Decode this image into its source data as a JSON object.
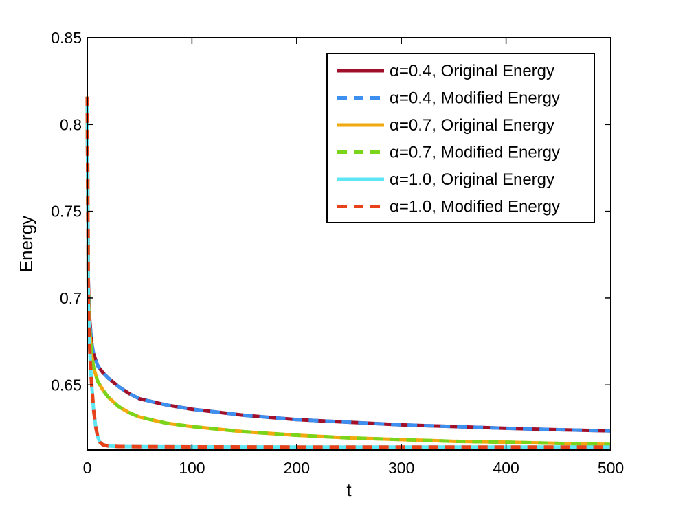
{
  "chart_data": {
    "type": "line",
    "title": "",
    "xlabel": "t",
    "ylabel": "Energy",
    "xlim": [
      0,
      500
    ],
    "ylim": [
      0.6125,
      0.85
    ],
    "xticks": [
      0,
      100,
      200,
      300,
      400,
      500
    ],
    "xtick_labels": [
      "0",
      "100",
      "200",
      "300",
      "400",
      "500"
    ],
    "yticks": [
      0.65,
      0.7,
      0.75,
      0.8,
      0.85
    ],
    "ytick_labels": [
      "0.65",
      "0.7",
      "0.75",
      "0.8",
      "0.85"
    ],
    "grid": false,
    "legend_position": "top-right",
    "series": [
      {
        "name": "α=0.4, Original Energy",
        "style": "solid",
        "color": "#a0102a",
        "x": [
          0,
          1,
          2,
          4,
          6,
          10,
          15,
          20,
          30,
          40,
          50,
          75,
          100,
          150,
          200,
          250,
          300,
          350,
          400,
          450,
          500
        ],
        "y": [
          0.816,
          0.71,
          0.69,
          0.675,
          0.668,
          0.661,
          0.657,
          0.654,
          0.649,
          0.645,
          0.642,
          0.6385,
          0.636,
          0.6325,
          0.63,
          0.6285,
          0.627,
          0.626,
          0.625,
          0.6242,
          0.6235
        ]
      },
      {
        "name": "α=0.4, Modified Energy",
        "style": "dashed",
        "color": "#3d8ff0",
        "x": [
          0,
          1,
          2,
          4,
          6,
          10,
          15,
          20,
          30,
          40,
          50,
          75,
          100,
          150,
          200,
          250,
          300,
          350,
          400,
          450,
          500
        ],
        "y": [
          0.816,
          0.71,
          0.69,
          0.675,
          0.668,
          0.661,
          0.657,
          0.654,
          0.649,
          0.645,
          0.642,
          0.6385,
          0.636,
          0.6325,
          0.63,
          0.6285,
          0.627,
          0.626,
          0.625,
          0.6242,
          0.6235
        ]
      },
      {
        "name": "α=0.7, Original Energy",
        "style": "solid",
        "color": "#f0aa10",
        "x": [
          0,
          1,
          2,
          4,
          6,
          10,
          15,
          20,
          30,
          40,
          50,
          75,
          100,
          150,
          200,
          250,
          300,
          350,
          400,
          450,
          500
        ],
        "y": [
          0.816,
          0.705,
          0.685,
          0.668,
          0.66,
          0.652,
          0.647,
          0.643,
          0.6375,
          0.634,
          0.6315,
          0.628,
          0.626,
          0.623,
          0.621,
          0.6195,
          0.6185,
          0.6175,
          0.617,
          0.6163,
          0.6157
        ]
      },
      {
        "name": "α=0.7, Modified Energy",
        "style": "dashed",
        "color": "#7ad41a",
        "x": [
          0,
          1,
          2,
          4,
          6,
          10,
          15,
          20,
          30,
          40,
          50,
          75,
          100,
          150,
          200,
          250,
          300,
          350,
          400,
          450,
          500
        ],
        "y": [
          0.816,
          0.705,
          0.685,
          0.668,
          0.66,
          0.652,
          0.647,
          0.643,
          0.6375,
          0.634,
          0.6315,
          0.628,
          0.626,
          0.623,
          0.621,
          0.6195,
          0.6185,
          0.6175,
          0.617,
          0.6163,
          0.6157
        ]
      },
      {
        "name": "α=1.0, Original Energy",
        "style": "solid",
        "color": "#5ee6f5",
        "x": [
          0,
          1,
          2,
          3,
          4,
          6,
          8,
          10,
          12,
          15,
          20,
          30,
          50,
          100,
          200,
          300,
          400,
          500
        ],
        "y": [
          0.816,
          0.7,
          0.676,
          0.662,
          0.652,
          0.636,
          0.626,
          0.62,
          0.617,
          0.6155,
          0.6148,
          0.6145,
          0.6144,
          0.6143,
          0.6142,
          0.6142,
          0.6142,
          0.6142
        ]
      },
      {
        "name": "α=1.0, Modified Energy",
        "style": "dashed",
        "color": "#e8421a",
        "x": [
          0,
          1,
          2,
          3,
          4,
          6,
          8,
          10,
          12,
          15,
          20,
          30,
          50,
          100,
          200,
          300,
          400,
          500
        ],
        "y": [
          0.816,
          0.7,
          0.676,
          0.662,
          0.652,
          0.636,
          0.626,
          0.62,
          0.617,
          0.6155,
          0.6148,
          0.6145,
          0.6144,
          0.6143,
          0.6142,
          0.6142,
          0.6142,
          0.6142
        ]
      }
    ]
  }
}
